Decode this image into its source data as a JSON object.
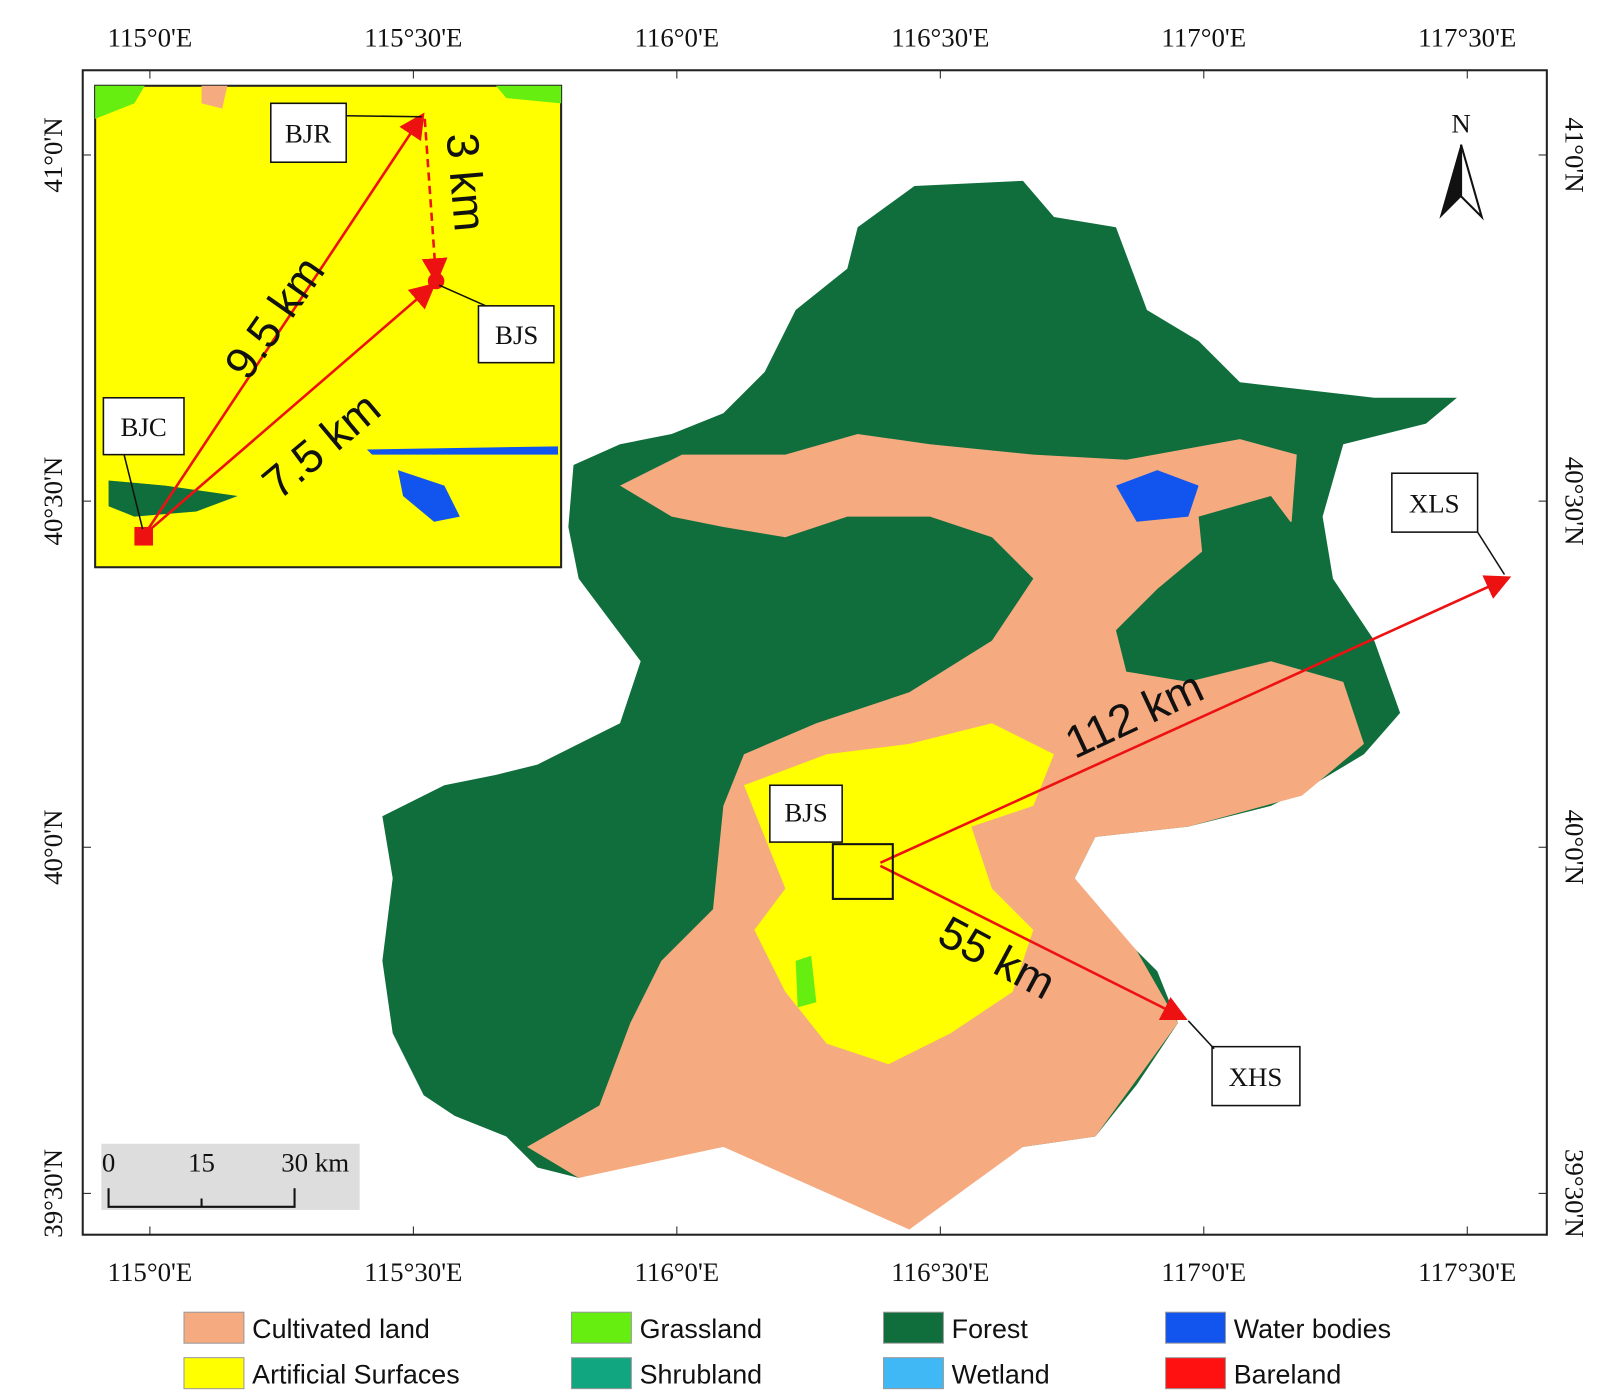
{
  "map": {
    "lon_labels": [
      "115°0'E",
      "115°30'E",
      "116°0'E",
      "116°30'E",
      "117°0'E",
      "117°30'E"
    ],
    "lat_labels": [
      "41°0'N",
      "40°30'N",
      "40°0'N",
      "39°30'N"
    ],
    "north": "N",
    "stations": [
      "BJS",
      "XLS",
      "XHS"
    ],
    "distances": [
      "112 km",
      "55 km"
    ],
    "inset": {
      "stations": [
        "BJR",
        "BJS",
        "BJC"
      ],
      "distances": [
        "9.5 km",
        "3 km",
        "7.5 km"
      ]
    },
    "scale_bar": [
      "0",
      "15",
      "30 km"
    ],
    "legend": [
      {
        "label": "Cultivated land",
        "color": "#f5aa80"
      },
      {
        "label": "Artificial Surfaces",
        "color": "#ffff00"
      },
      {
        "label": "Grassland",
        "color": "#66ee11"
      },
      {
        "label": "Shrubland",
        "color": "#11a580"
      },
      {
        "label": "Forest",
        "color": "#0f6e3c"
      },
      {
        "label": "Wetland",
        "color": "#40b8f5"
      },
      {
        "label": "Water bodies",
        "color": "#1155ee"
      },
      {
        "label": "Bareland",
        "color": "#ff1111"
      }
    ]
  }
}
